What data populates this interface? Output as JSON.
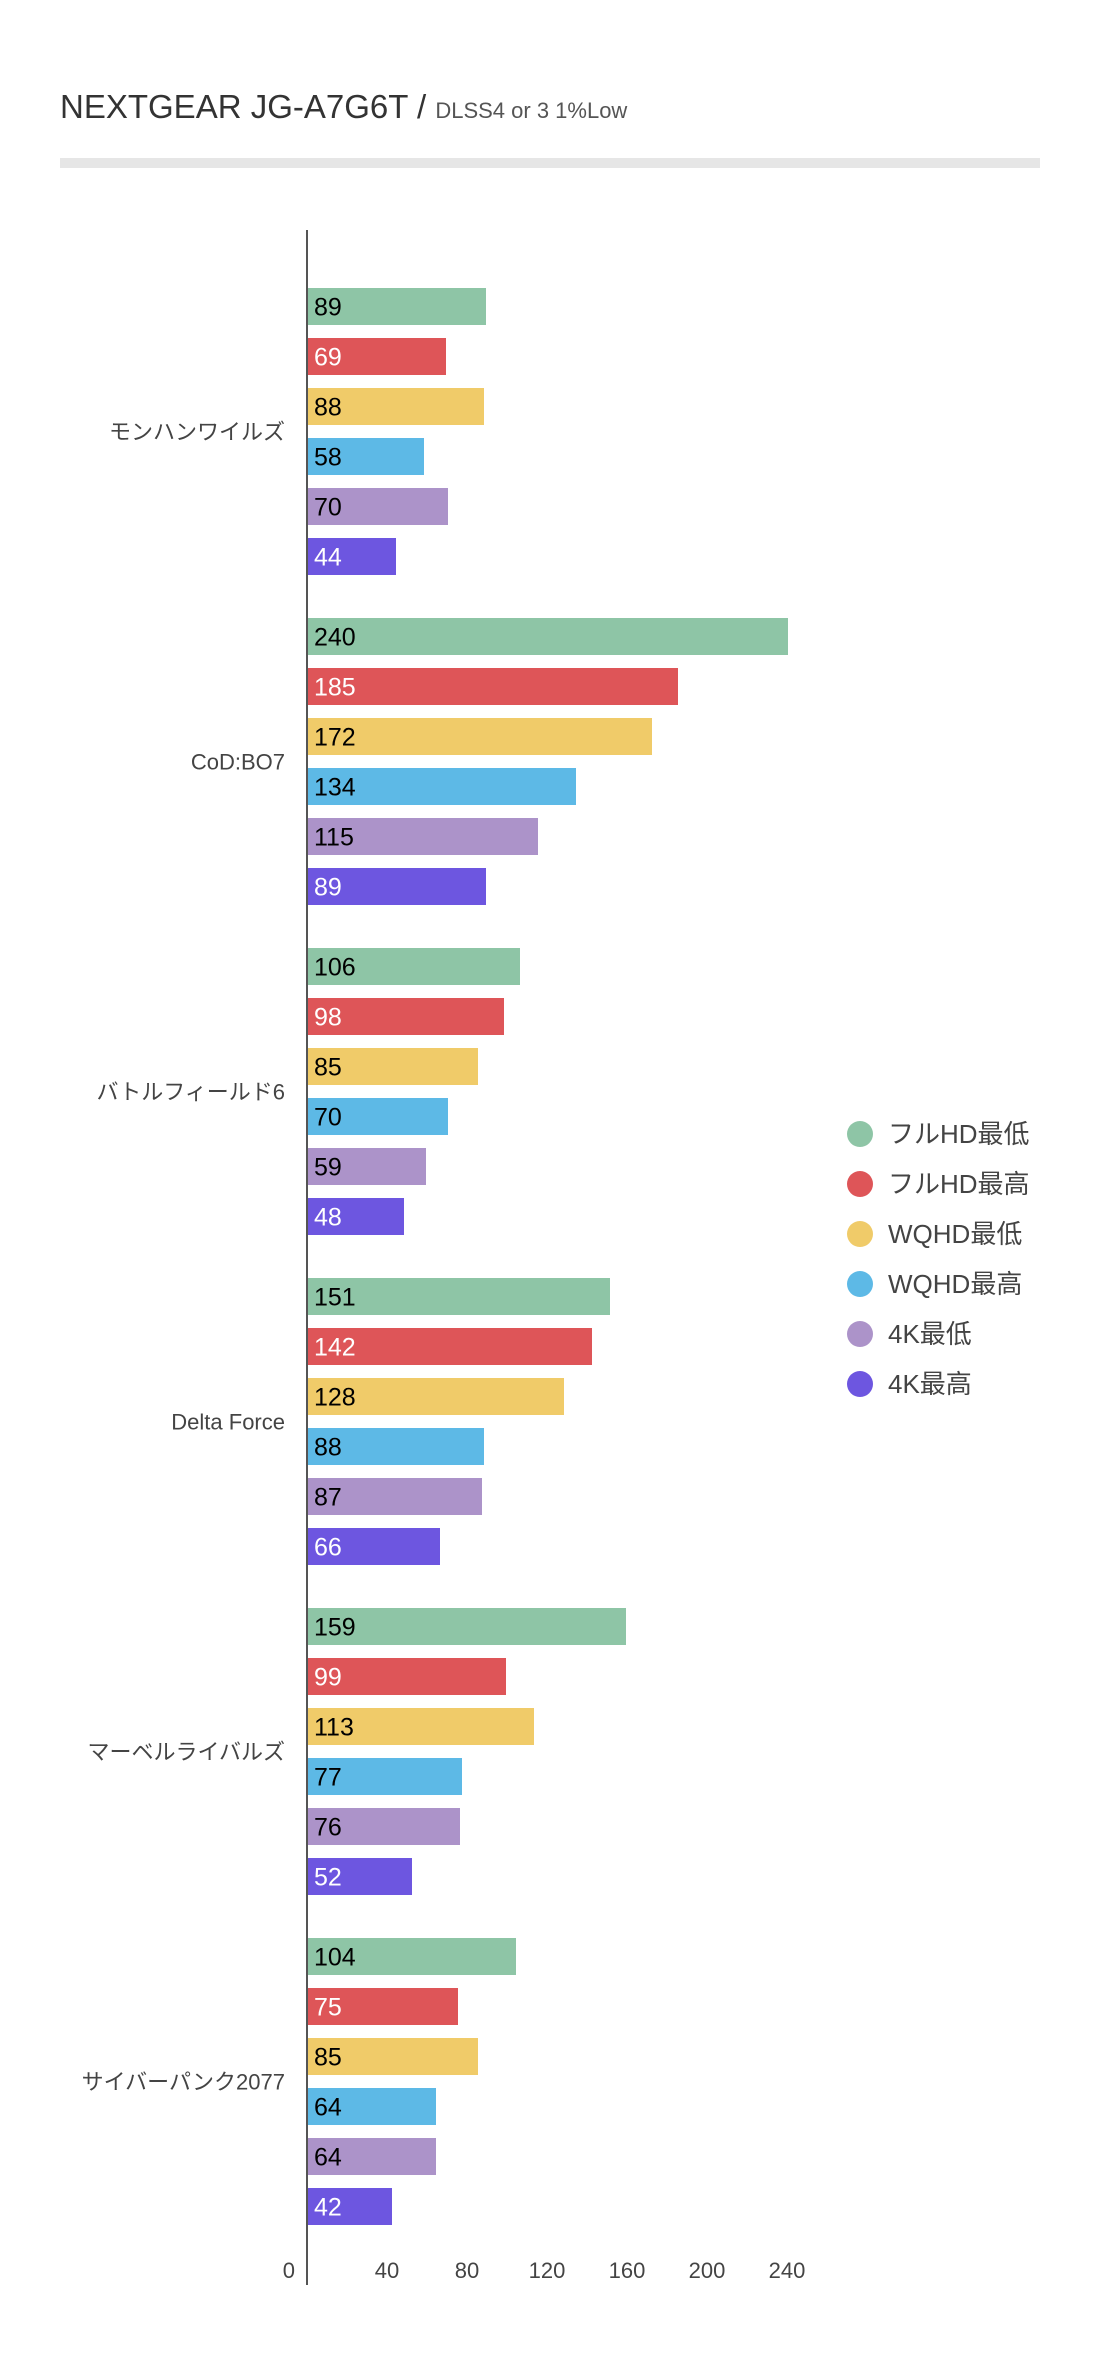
{
  "title": {
    "main": "NEXTGEAR JG-A7G6T",
    "separator": " / ",
    "subtitle": "DLSS4 or 3 1%Low"
  },
  "chart_data": {
    "type": "bar",
    "orientation": "horizontal",
    "categories": [
      "モンハンワイルズ",
      "CoD:BO7",
      "バトルフィールド6",
      "Delta Force",
      "マーベルライバルズ",
      "サイバーパンク2077"
    ],
    "series": [
      {
        "name": "フルHD最低",
        "color": "#8ec5a6",
        "label_color": "#000000",
        "values": [
          89,
          240,
          106,
          151,
          159,
          104
        ]
      },
      {
        "name": "フルHD最高",
        "color": "#de5558",
        "label_color": "#ffffff",
        "values": [
          69,
          185,
          98,
          142,
          99,
          75
        ]
      },
      {
        "name": "WQHD最低",
        "color": "#f0cb69",
        "label_color": "#000000",
        "values": [
          88,
          172,
          85,
          128,
          113,
          85
        ]
      },
      {
        "name": "WQHD最高",
        "color": "#5db9e6",
        "label_color": "#000000",
        "values": [
          58,
          134,
          70,
          88,
          77,
          64
        ]
      },
      {
        "name": "4K最低",
        "color": "#ac93c9",
        "label_color": "#000000",
        "values": [
          70,
          115,
          59,
          87,
          76,
          64
        ]
      },
      {
        "name": "4K最高",
        "color": "#6d56e0",
        "label_color": "#ffffff",
        "values": [
          44,
          89,
          48,
          66,
          52,
          42
        ]
      }
    ],
    "x_ticks": [
      "0",
      "40",
      "80",
      "120",
      "160",
      "200",
      "240"
    ],
    "xlim": [
      0,
      240
    ],
    "legend_position": "right",
    "grid": false
  }
}
